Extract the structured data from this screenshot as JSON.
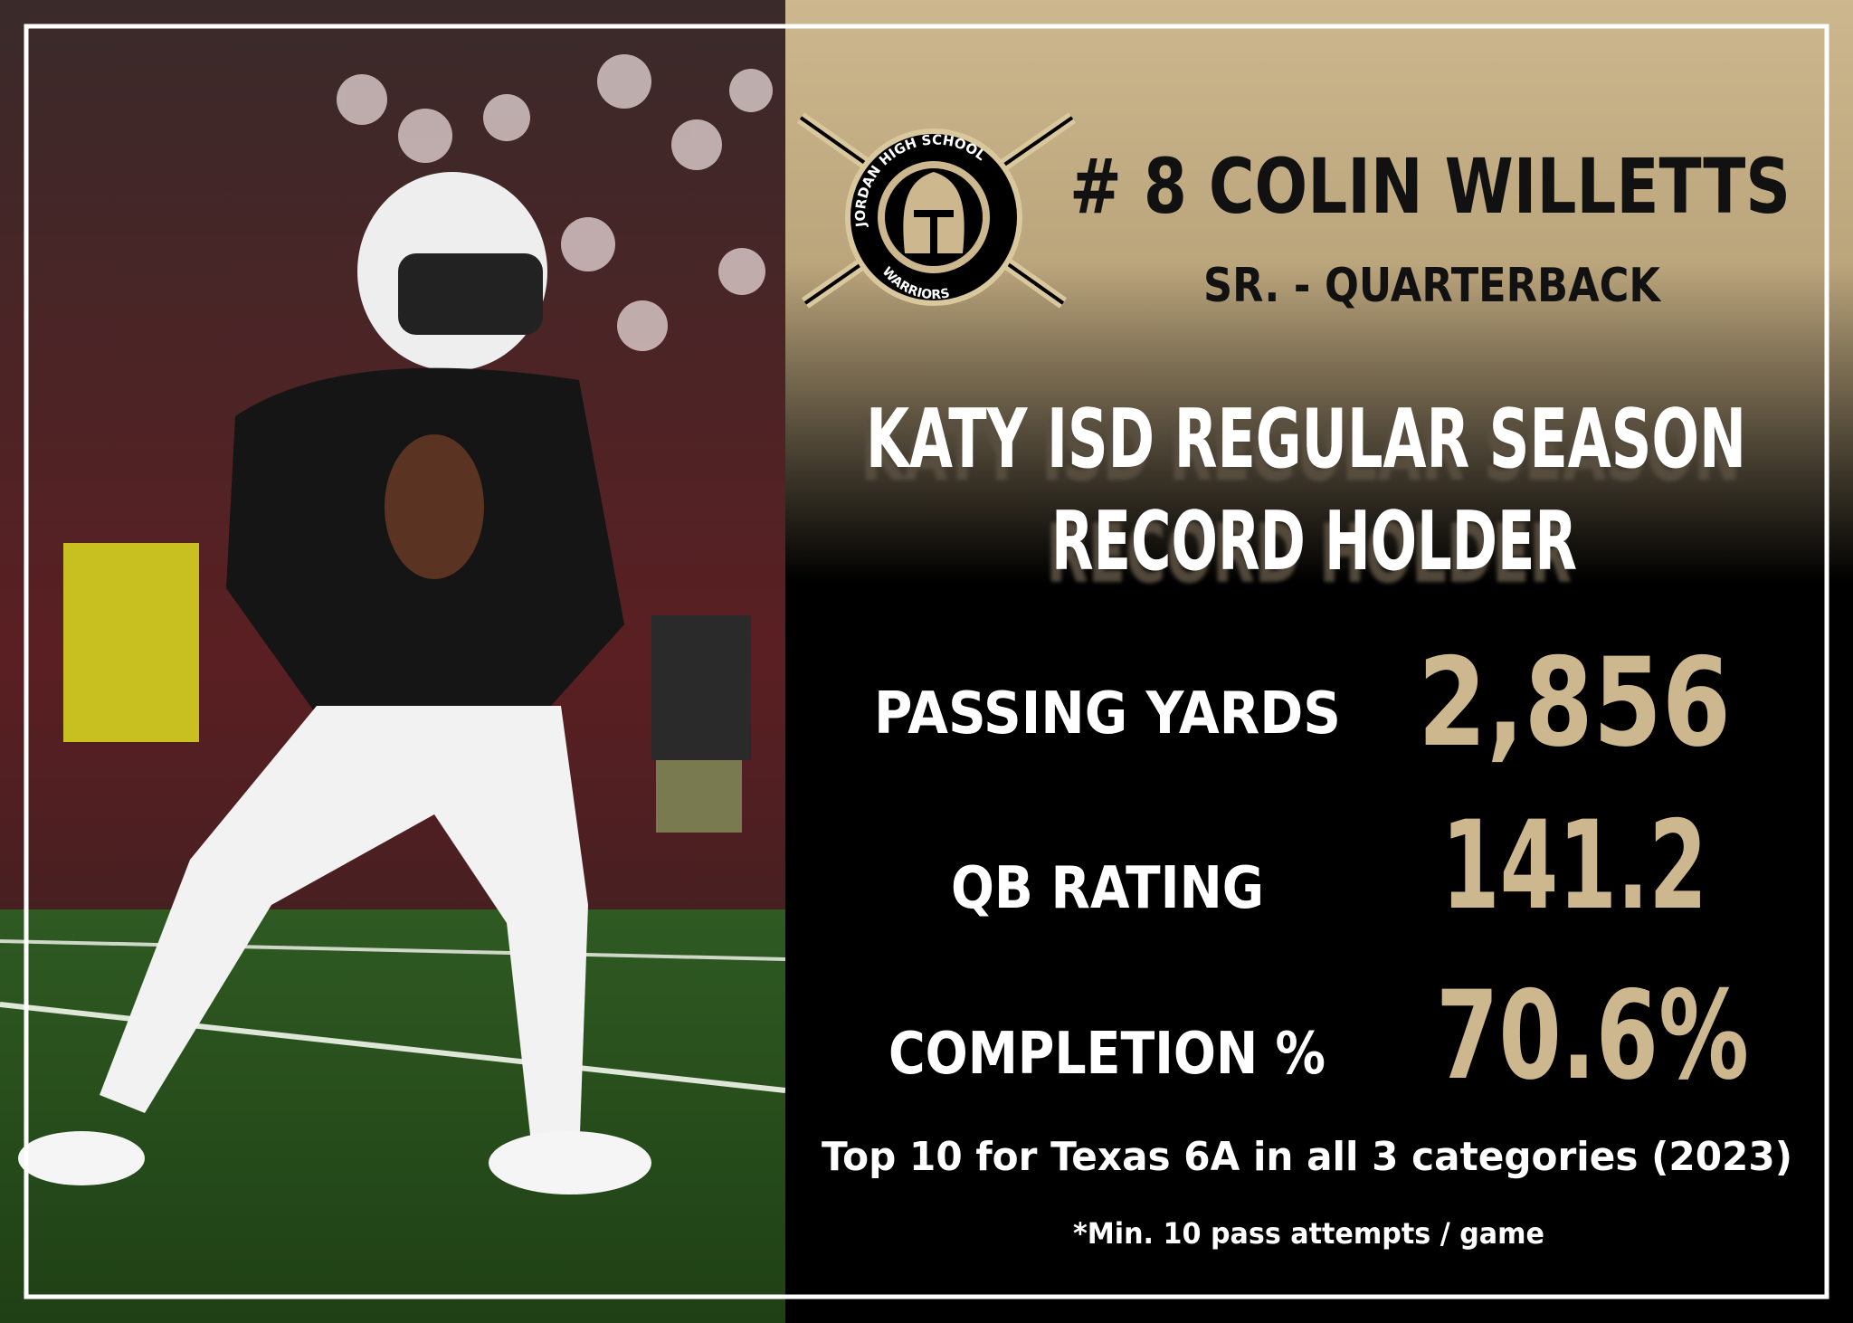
{
  "logo": {
    "arc_text": "JORDAN HIGH SCHOOL",
    "bottom_text": "WARRIORS"
  },
  "header": {
    "player": "# 8  COLIN WILLETTS",
    "position": "SR. - QUARTERBACK"
  },
  "headline": {
    "line1": "KATY ISD REGULAR SEASON",
    "line2": "RECORD HOLDER"
  },
  "stats": [
    {
      "label": "PASSING YARDS",
      "value": "2,856"
    },
    {
      "label": "QB RATING",
      "value": "141.2"
    },
    {
      "label": "COMPLETION %",
      "value": "70.6%"
    }
  ],
  "footnotes": {
    "note": "Top 10 for Texas 6A in all 3 categories (2023)",
    "fine_print": "*Min. 10 pass attempts / game"
  }
}
